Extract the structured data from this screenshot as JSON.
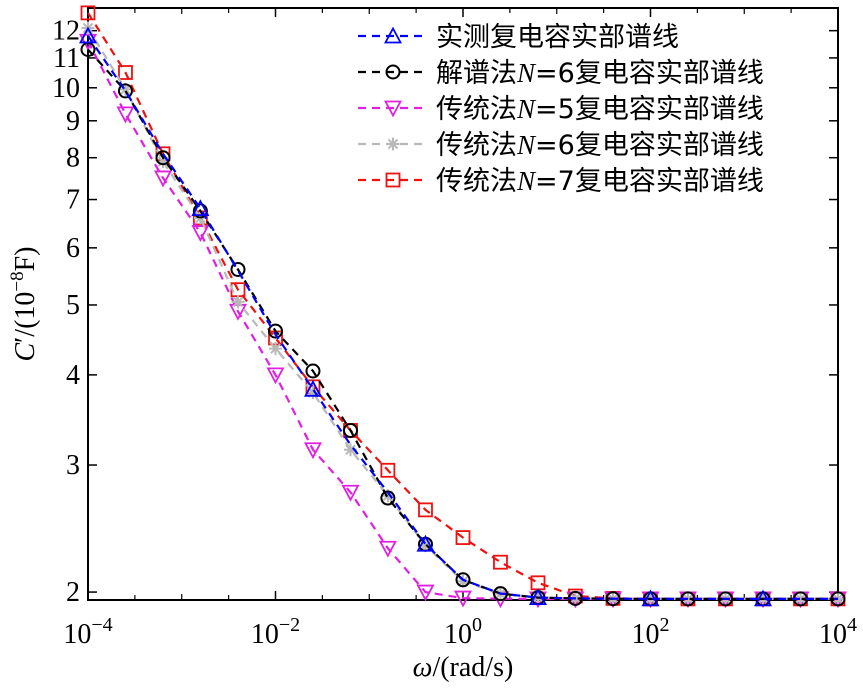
{
  "chart_data": {
    "type": "line",
    "xscale": "log",
    "yscale": "log",
    "xlim": [
      0.0001,
      10000
    ],
    "ylim": [
      1.95,
      12.9
    ],
    "grid": false,
    "legend_position": "top-right",
    "xlabel": {
      "sym": "ω",
      "unit": "/(rad/s)"
    },
    "ylabel": {
      "sym": "C",
      "prime": "′",
      "pre": "/(10",
      "exp": "−8",
      "post": "F)"
    },
    "xticks": [
      {
        "value": 0.0001,
        "base": "10",
        "exp": "−4"
      },
      {
        "value": 0.01,
        "base": "10",
        "exp": "−2"
      },
      {
        "value": 1,
        "base": "10",
        "exp": "0"
      },
      {
        "value": 100,
        "base": "10",
        "exp": "2"
      },
      {
        "value": 10000,
        "base": "10",
        "exp": "4"
      }
    ],
    "yticks": [
      {
        "value": 2,
        "label": "2"
      },
      {
        "value": 3,
        "label": "3"
      },
      {
        "value": 4,
        "label": "4"
      },
      {
        "value": 5,
        "label": "5"
      },
      {
        "value": 6,
        "label": "6"
      },
      {
        "value": 7,
        "label": "7"
      },
      {
        "value": 8,
        "label": "8"
      },
      {
        "value": 9,
        "label": "9"
      },
      {
        "value": 10,
        "label": "10"
      },
      {
        "value": 11,
        "label": "11"
      },
      {
        "value": 12,
        "label": "12"
      }
    ],
    "series": [
      {
        "name_parts": [
          "实测复电容实部谱线"
        ],
        "color": "#0000ff",
        "marker": "triangle-up",
        "x": [
          0.0001,
          0.000251,
          0.000631,
          0.00158,
          0.00398,
          0.01,
          0.0251,
          0.0631,
          0.158,
          0.398,
          1,
          2.51,
          6.31,
          15.8,
          39.8,
          100,
          251,
          631,
          1585,
          3981,
          10000
        ],
        "y": [
          11.8,
          9.9,
          8.1,
          6.8,
          5.58,
          4.55,
          3.82,
          3.2,
          2.75,
          2.33,
          2.08,
          1.99,
          1.965,
          1.96,
          1.958,
          1.957,
          1.957,
          1.957,
          1.957,
          1.957,
          1.957
        ],
        "marker_x": [
          0.0001,
          0.00158,
          0.0251,
          0.398,
          6.31,
          100,
          1585
        ]
      },
      {
        "name_parts": [
          "解谱法",
          "N",
          "=6复电容实部谱线"
        ],
        "color": "#000000",
        "marker": "circle",
        "x": [
          0.0001,
          0.000251,
          0.000631,
          0.00158,
          0.00398,
          0.01,
          0.0251,
          0.0631,
          0.158,
          0.398,
          1,
          2.51,
          6.31,
          15.8,
          39.8,
          100,
          251,
          631,
          1585,
          3981,
          10000
        ],
        "y": [
          11.3,
          9.9,
          8.0,
          6.75,
          5.6,
          4.6,
          4.05,
          3.35,
          2.7,
          2.33,
          2.08,
          1.99,
          1.965,
          1.96,
          1.958,
          1.957,
          1.957,
          1.957,
          1.957,
          1.957,
          1.957
        ],
        "marker_x": [
          0.0001,
          0.000251,
          0.000631,
          0.00158,
          0.00398,
          0.01,
          0.0251,
          0.0631,
          0.158,
          0.398,
          1,
          2.51,
          6.31,
          15.8,
          39.8,
          100,
          251,
          631,
          1585,
          3981,
          10000
        ]
      },
      {
        "name_parts": [
          "传统法",
          "N",
          "=5复电容实部谱线"
        ],
        "color": "#e020e0",
        "marker": "triangle-down",
        "x": [
          0.0001,
          0.000251,
          0.000631,
          0.00158,
          0.00398,
          0.01,
          0.0251,
          0.0631,
          0.158,
          0.398,
          1,
          2.51,
          6.31,
          15.8,
          39.8,
          100,
          251,
          631,
          1585,
          3981,
          10000
        ],
        "y": [
          11.6,
          9.2,
          7.5,
          6.3,
          4.9,
          4.0,
          3.15,
          2.75,
          2.3,
          2.0,
          1.962,
          1.958,
          1.957,
          1.957,
          1.957,
          1.957,
          1.957,
          1.957,
          1.957,
          1.957,
          1.957
        ],
        "marker_x": [
          0.0001,
          0.000251,
          0.000631,
          0.00158,
          0.00398,
          0.01,
          0.0251,
          0.0631,
          0.158,
          0.398,
          1,
          2.51,
          6.31,
          15.8,
          39.8,
          100,
          251,
          631,
          1585,
          3981,
          10000
        ]
      },
      {
        "name_parts": [
          "传统法",
          "N",
          "=6复电容实部谱线"
        ],
        "color": "#b8b8b8",
        "marker": "asterisk",
        "x": [
          0.0001,
          0.000251,
          0.000631,
          0.00158,
          0.00398,
          0.01,
          0.0251,
          0.0631,
          0.158,
          0.398,
          1,
          2.51,
          6.31,
          15.8,
          39.8,
          100,
          251,
          631,
          1585,
          3981,
          10000
        ],
        "y": [
          12.1,
          9.95,
          7.9,
          6.6,
          5.05,
          4.35,
          3.78,
          3.15,
          2.72,
          2.32,
          2.07,
          1.99,
          1.965,
          1.96,
          1.958,
          1.957,
          1.957,
          1.957,
          1.957,
          1.957,
          1.957
        ],
        "marker_x": [
          0.0001,
          0.000251,
          0.000631,
          0.00158,
          0.00398,
          0.01,
          0.0251,
          0.0631,
          0.158,
          0.398,
          1,
          2.51,
          6.31,
          15.8,
          39.8,
          100,
          251,
          631,
          1585,
          3981,
          10000
        ]
      },
      {
        "name_parts": [
          "传统法",
          "N",
          "=7复电容实部谱线"
        ],
        "color": "#ee1111",
        "marker": "square",
        "x": [
          0.0001,
          0.000251,
          0.000631,
          0.00158,
          0.00398,
          0.01,
          0.0251,
          0.0631,
          0.158,
          0.398,
          1,
          2.51,
          6.31,
          15.8,
          39.8,
          100,
          251,
          631,
          1585,
          3981,
          10000
        ],
        "y": [
          12.7,
          10.5,
          8.1,
          6.6,
          5.25,
          4.5,
          3.85,
          3.35,
          2.95,
          2.6,
          2.38,
          2.2,
          2.06,
          1.975,
          1.96,
          1.957,
          1.957,
          1.957,
          1.957,
          1.957,
          1.957
        ],
        "marker_x": [
          0.0001,
          0.000251,
          0.000631,
          0.00158,
          0.00398,
          0.01,
          0.0251,
          0.0631,
          0.158,
          0.398,
          1,
          2.51,
          6.31,
          15.8,
          39.8,
          100,
          251,
          631,
          1585,
          3981,
          10000
        ]
      }
    ]
  }
}
